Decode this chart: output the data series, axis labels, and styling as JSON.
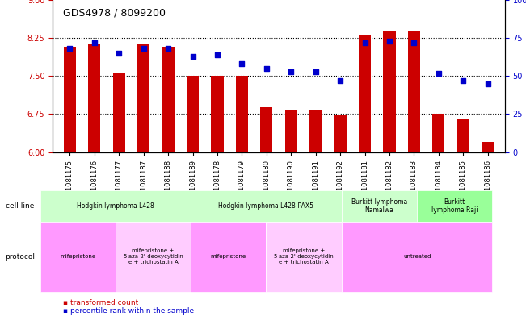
{
  "title": "GDS4978 / 8099200",
  "samples": [
    "GSM1081175",
    "GSM1081176",
    "GSM1081177",
    "GSM1081187",
    "GSM1081188",
    "GSM1081189",
    "GSM1081178",
    "GSM1081179",
    "GSM1081180",
    "GSM1081190",
    "GSM1081191",
    "GSM1081192",
    "GSM1081181",
    "GSM1081182",
    "GSM1081183",
    "GSM1081184",
    "GSM1081185",
    "GSM1081186"
  ],
  "transformed_count": [
    8.08,
    8.12,
    7.55,
    8.12,
    8.08,
    7.5,
    7.5,
    7.5,
    6.88,
    6.83,
    6.83,
    6.72,
    8.3,
    8.38,
    8.38,
    6.75,
    6.65,
    6.2
  ],
  "percentile_rank": [
    68,
    72,
    65,
    68,
    68,
    63,
    64,
    58,
    55,
    53,
    53,
    47,
    72,
    73,
    72,
    52,
    47,
    45
  ],
  "ylim_left": [
    6,
    9
  ],
  "ylim_right": [
    0,
    100
  ],
  "yticks_left": [
    6,
    6.75,
    7.5,
    8.25,
    9
  ],
  "yticks_right": [
    0,
    25,
    50,
    75,
    100
  ],
  "bar_color": "#cc0000",
  "dot_color": "#0000cc",
  "grid_color": "#000000",
  "cell_line_groups": [
    {
      "label": "Hodgkin lymphoma L428",
      "start": 0,
      "end": 6,
      "color": "#ccffcc"
    },
    {
      "label": "Hodgkin lymphoma L428-PAX5",
      "start": 6,
      "end": 12,
      "color": "#ccffcc"
    },
    {
      "label": "Burkitt lymphoma\nNamalwa",
      "start": 12,
      "end": 15,
      "color": "#ccffcc"
    },
    {
      "label": "Burkitt\nlymphoma Raji",
      "start": 15,
      "end": 18,
      "color": "#99ff99"
    }
  ],
  "protocol_groups": [
    {
      "label": "mifepristone",
      "start": 0,
      "end": 3,
      "color": "#ff99ff"
    },
    {
      "label": "mifepristone +\n5-aza-2'-deoxycytidin\ne + trichostatin A",
      "start": 3,
      "end": 6,
      "color": "#ffccff"
    },
    {
      "label": "mifepristone",
      "start": 6,
      "end": 9,
      "color": "#ff99ff"
    },
    {
      "label": "mifepristone +\n5-aza-2'-deoxycytidin\ne + trichostatin A",
      "start": 9,
      "end": 12,
      "color": "#ffccff"
    },
    {
      "label": "untreated",
      "start": 12,
      "end": 18,
      "color": "#ff99ff"
    }
  ],
  "legend_items": [
    {
      "label": "transformed count",
      "color": "#cc0000",
      "marker": "s"
    },
    {
      "label": "percentile rank within the sample",
      "color": "#0000cc",
      "marker": "s"
    }
  ]
}
